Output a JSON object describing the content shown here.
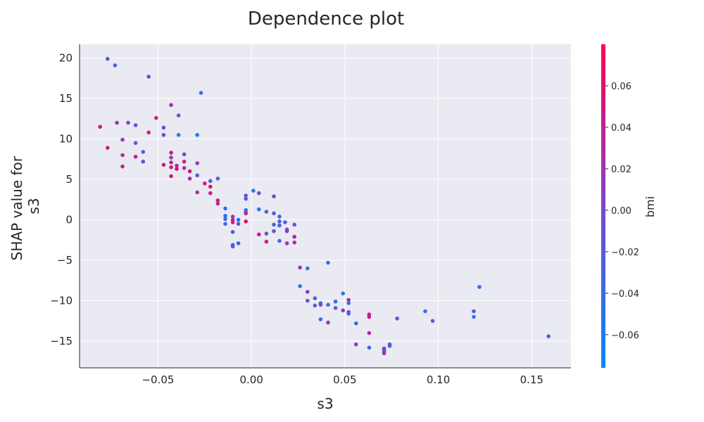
{
  "chart_data": {
    "type": "scatter",
    "title": "Dependence plot",
    "xlabel": "s3",
    "ylabel_lines": [
      "SHAP value for",
      "s3"
    ],
    "xlim": [
      -0.092,
      0.171
    ],
    "ylim": [
      -18.3,
      21.7
    ],
    "x_ticks": [
      -0.05,
      0.0,
      0.05,
      0.1,
      0.15
    ],
    "x_tick_labels": [
      "−0.05",
      "0.00",
      "0.05",
      "0.10",
      "0.15"
    ],
    "y_ticks": [
      -15,
      -10,
      -5,
      0,
      5,
      10,
      15,
      20
    ],
    "y_tick_labels": [
      "−15",
      "−10",
      "−5",
      "0",
      "5",
      "10",
      "15",
      "20"
    ],
    "grid": true,
    "colorbar": {
      "label": "bmi",
      "range": [
        -0.076,
        0.08
      ],
      "ticks": [
        -0.06,
        -0.04,
        -0.02,
        0.0,
        0.02,
        0.04,
        0.06
      ],
      "tick_labels": [
        "−0.06",
        "−0.04",
        "−0.02",
        "0.00",
        "0.02",
        "0.04",
        "0.06"
      ],
      "color_low": "#008afb",
      "color_high": "#ff0052"
    },
    "points": [
      {
        "x": -0.077,
        "y": 19.9,
        "c": -0.02
      },
      {
        "x": -0.073,
        "y": 19.1,
        "c": -0.03
      },
      {
        "x": -0.055,
        "y": 17.7,
        "c": -0.01
      },
      {
        "x": -0.027,
        "y": 15.7,
        "c": -0.04
      },
      {
        "x": -0.043,
        "y": 14.2,
        "c": 0.02
      },
      {
        "x": -0.039,
        "y": 12.9,
        "c": -0.01
      },
      {
        "x": -0.051,
        "y": 12.6,
        "c": 0.04
      },
      {
        "x": -0.066,
        "y": 12.0,
        "c": 0.0
      },
      {
        "x": -0.072,
        "y": 12.0,
        "c": 0.02
      },
      {
        "x": -0.062,
        "y": 11.7,
        "c": -0.02
      },
      {
        "x": -0.081,
        "y": 11.5,
        "c": 0.06
      },
      {
        "x": -0.047,
        "y": 11.4,
        "c": -0.01
      },
      {
        "x": -0.055,
        "y": 10.8,
        "c": 0.04
      },
      {
        "x": -0.039,
        "y": 10.5,
        "c": -0.06
      },
      {
        "x": -0.029,
        "y": 10.5,
        "c": -0.06
      },
      {
        "x": -0.047,
        "y": 10.5,
        "c": 0.0
      },
      {
        "x": -0.069,
        "y": 9.9,
        "c": 0.02
      },
      {
        "x": -0.062,
        "y": 9.5,
        "c": -0.01
      },
      {
        "x": -0.077,
        "y": 8.9,
        "c": 0.05
      },
      {
        "x": -0.058,
        "y": 8.4,
        "c": -0.02
      },
      {
        "x": -0.043,
        "y": 8.3,
        "c": 0.05
      },
      {
        "x": -0.036,
        "y": 8.1,
        "c": -0.01
      },
      {
        "x": -0.069,
        "y": 8.0,
        "c": 0.03
      },
      {
        "x": -0.062,
        "y": 7.8,
        "c": 0.04
      },
      {
        "x": -0.043,
        "y": 7.7,
        "c": 0.01
      },
      {
        "x": -0.036,
        "y": 7.2,
        "c": 0.05
      },
      {
        "x": -0.058,
        "y": 7.2,
        "c": -0.02
      },
      {
        "x": -0.043,
        "y": 7.1,
        "c": 0.03
      },
      {
        "x": -0.029,
        "y": 7.0,
        "c": 0.02
      },
      {
        "x": -0.047,
        "y": 6.8,
        "c": 0.05
      },
      {
        "x": -0.04,
        "y": 6.7,
        "c": 0.03
      },
      {
        "x": -0.069,
        "y": 6.6,
        "c": 0.04
      },
      {
        "x": -0.043,
        "y": 6.5,
        "c": 0.06
      },
      {
        "x": -0.036,
        "y": 6.4,
        "c": 0.02
      },
      {
        "x": -0.04,
        "y": 6.3,
        "c": 0.06
      },
      {
        "x": -0.033,
        "y": 6.0,
        "c": 0.05
      },
      {
        "x": -0.029,
        "y": 5.5,
        "c": -0.02
      },
      {
        "x": -0.043,
        "y": 5.4,
        "c": 0.05
      },
      {
        "x": -0.033,
        "y": 5.1,
        "c": 0.03
      },
      {
        "x": -0.018,
        "y": 5.1,
        "c": -0.02
      },
      {
        "x": -0.022,
        "y": 4.8,
        "c": -0.02
      },
      {
        "x": -0.025,
        "y": 4.5,
        "c": 0.06
      },
      {
        "x": -0.022,
        "y": 4.1,
        "c": 0.06
      },
      {
        "x": 0.001,
        "y": 3.6,
        "c": -0.05
      },
      {
        "x": -0.029,
        "y": 3.4,
        "c": 0.03
      },
      {
        "x": -0.022,
        "y": 3.3,
        "c": 0.05
      },
      {
        "x": 0.004,
        "y": 3.3,
        "c": -0.01
      },
      {
        "x": -0.003,
        "y": 3.0,
        "c": -0.02
      },
      {
        "x": 0.012,
        "y": 2.9,
        "c": 0.0
      },
      {
        "x": -0.003,
        "y": 2.6,
        "c": -0.01
      },
      {
        "x": -0.018,
        "y": 2.4,
        "c": 0.05
      },
      {
        "x": -0.018,
        "y": 2.0,
        "c": 0.04
      },
      {
        "x": -0.014,
        "y": 1.4,
        "c": -0.05
      },
      {
        "x": 0.004,
        "y": 1.3,
        "c": -0.06
      },
      {
        "x": -0.003,
        "y": 1.2,
        "c": -0.05
      },
      {
        "x": -0.003,
        "y": 0.9,
        "c": -0.02
      },
      {
        "x": 0.008,
        "y": 1.0,
        "c": -0.01
      },
      {
        "x": 0.012,
        "y": 0.8,
        "c": -0.02
      },
      {
        "x": -0.014,
        "y": 0.5,
        "c": -0.05
      },
      {
        "x": -0.003,
        "y": 0.8,
        "c": 0.04
      },
      {
        "x": 0.015,
        "y": 0.4,
        "c": -0.04
      },
      {
        "x": -0.01,
        "y": 0.4,
        "c": 0.01
      },
      {
        "x": -0.014,
        "y": 0.1,
        "c": -0.03
      },
      {
        "x": -0.01,
        "y": 0.0,
        "c": 0.03
      },
      {
        "x": -0.007,
        "y": 0.0,
        "c": -0.05
      },
      {
        "x": -0.01,
        "y": -0.3,
        "c": 0.05
      },
      {
        "x": -0.003,
        "y": -0.2,
        "c": 0.06
      },
      {
        "x": 0.018,
        "y": -0.3,
        "c": -0.03
      },
      {
        "x": 0.015,
        "y": -0.2,
        "c": -0.03
      },
      {
        "x": -0.014,
        "y": -0.5,
        "c": -0.04
      },
      {
        "x": -0.007,
        "y": -0.5,
        "c": -0.02
      },
      {
        "x": 0.012,
        "y": -0.6,
        "c": -0.03
      },
      {
        "x": 0.015,
        "y": -0.7,
        "c": -0.03
      },
      {
        "x": 0.023,
        "y": -0.6,
        "c": -0.01
      },
      {
        "x": 0.019,
        "y": -1.2,
        "c": 0.0
      },
      {
        "x": 0.019,
        "y": -1.4,
        "c": 0.01
      },
      {
        "x": -0.01,
        "y": -1.5,
        "c": -0.02
      },
      {
        "x": 0.012,
        "y": -1.4,
        "c": -0.01
      },
      {
        "x": 0.004,
        "y": -1.8,
        "c": 0.05
      },
      {
        "x": 0.008,
        "y": -1.7,
        "c": -0.02
      },
      {
        "x": 0.023,
        "y": -2.1,
        "c": 0.04
      },
      {
        "x": 0.015,
        "y": -2.6,
        "c": -0.03
      },
      {
        "x": 0.008,
        "y": -2.7,
        "c": 0.04
      },
      {
        "x": 0.019,
        "y": -2.9,
        "c": 0.02
      },
      {
        "x": 0.023,
        "y": -2.8,
        "c": 0.03
      },
      {
        "x": -0.007,
        "y": -2.9,
        "c": -0.03
      },
      {
        "x": -0.01,
        "y": -3.1,
        "c": -0.04
      },
      {
        "x": -0.01,
        "y": -3.3,
        "c": -0.03
      },
      {
        "x": 0.041,
        "y": -5.3,
        "c": -0.05
      },
      {
        "x": 0.026,
        "y": -5.9,
        "c": 0.01
      },
      {
        "x": 0.03,
        "y": -6.0,
        "c": -0.05
      },
      {
        "x": 0.026,
        "y": -8.2,
        "c": -0.05
      },
      {
        "x": 0.03,
        "y": -8.9,
        "c": 0.01
      },
      {
        "x": 0.049,
        "y": -9.1,
        "c": -0.05
      },
      {
        "x": 0.034,
        "y": -9.7,
        "c": -0.03
      },
      {
        "x": 0.052,
        "y": -9.9,
        "c": 0.03
      },
      {
        "x": 0.03,
        "y": -10.0,
        "c": -0.01
      },
      {
        "x": 0.045,
        "y": -10.1,
        "c": -0.04
      },
      {
        "x": 0.037,
        "y": -10.3,
        "c": -0.03
      },
      {
        "x": 0.052,
        "y": -10.3,
        "c": -0.05
      },
      {
        "x": 0.037,
        "y": -10.5,
        "c": 0.0
      },
      {
        "x": 0.041,
        "y": -10.5,
        "c": -0.04
      },
      {
        "x": 0.034,
        "y": -10.6,
        "c": -0.03
      },
      {
        "x": 0.045,
        "y": -10.9,
        "c": -0.03
      },
      {
        "x": 0.049,
        "y": -11.2,
        "c": 0.01
      },
      {
        "x": 0.093,
        "y": -11.3,
        "c": -0.05
      },
      {
        "x": 0.119,
        "y": -11.3,
        "c": -0.02
      },
      {
        "x": 0.052,
        "y": -11.4,
        "c": 0.01
      },
      {
        "x": 0.052,
        "y": -11.6,
        "c": -0.04
      },
      {
        "x": 0.063,
        "y": -11.7,
        "c": 0.04
      },
      {
        "x": 0.063,
        "y": -12.0,
        "c": 0.05
      },
      {
        "x": 0.119,
        "y": -12.0,
        "c": -0.05
      },
      {
        "x": 0.078,
        "y": -12.2,
        "c": -0.01
      },
      {
        "x": 0.037,
        "y": -12.3,
        "c": -0.04
      },
      {
        "x": 0.097,
        "y": -12.5,
        "c": -0.01
      },
      {
        "x": 0.041,
        "y": -12.7,
        "c": 0.01
      },
      {
        "x": 0.056,
        "y": -12.8,
        "c": -0.05
      },
      {
        "x": 0.063,
        "y": -14.0,
        "c": 0.03
      },
      {
        "x": 0.159,
        "y": -14.4,
        "c": -0.03
      },
      {
        "x": 0.056,
        "y": -15.4,
        "c": 0.01
      },
      {
        "x": 0.074,
        "y": -15.4,
        "c": 0.0
      },
      {
        "x": 0.074,
        "y": -15.6,
        "c": -0.04
      },
      {
        "x": 0.063,
        "y": -15.8,
        "c": -0.04
      },
      {
        "x": 0.071,
        "y": -15.9,
        "c": -0.01
      },
      {
        "x": 0.071,
        "y": -16.1,
        "c": 0.01
      },
      {
        "x": 0.071,
        "y": -16.3,
        "c": -0.02
      },
      {
        "x": 0.071,
        "y": -16.5,
        "c": 0.02
      },
      {
        "x": 0.122,
        "y": -8.3,
        "c": -0.05
      }
    ]
  }
}
